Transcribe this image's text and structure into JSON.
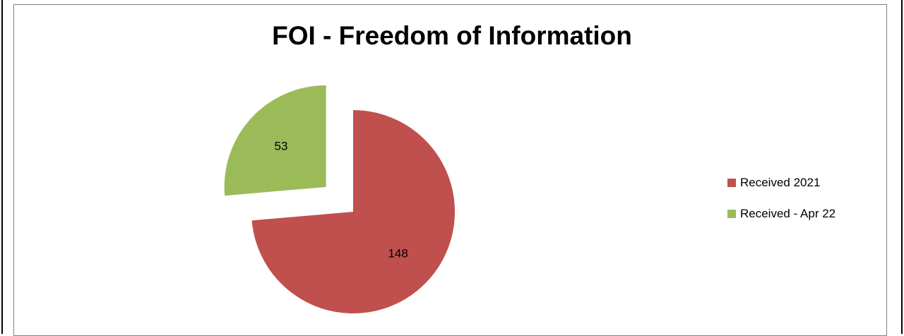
{
  "chart_data": {
    "type": "pie",
    "title": "FOI - Freedom of Information",
    "categories": [
      "Received 2021",
      "Received - Apr 22"
    ],
    "values": [
      148,
      53
    ],
    "colors": [
      "#c0504d",
      "#9bbb59"
    ],
    "exploded": [
      false,
      true
    ],
    "legend_position": "right",
    "data_labels": [
      "148",
      "53"
    ]
  }
}
